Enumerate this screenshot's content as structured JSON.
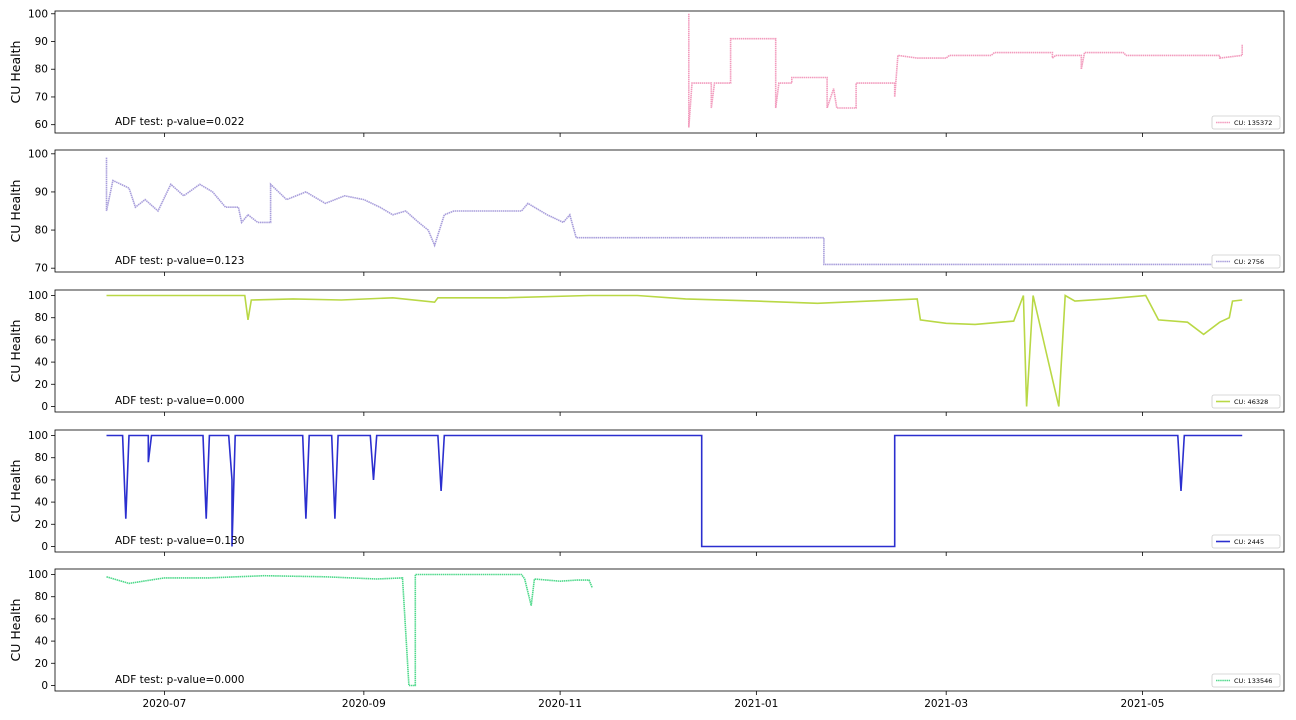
{
  "chart_data": [
    {
      "type": "line",
      "ylabel": "CU Health",
      "legend": "CU: 135372",
      "annotation": "ADF test: p-value=0.022",
      "color": "#f29bbd",
      "line_style": "dotted",
      "legend_placement": "lower-right",
      "ylim": [
        57,
        101
      ],
      "yticks": [
        60,
        70,
        80,
        90,
        100
      ],
      "series": [
        {
          "name": "CU: 135372",
          "points": [
            [
              "2020-12-11",
              100
            ],
            [
              "2020-12-11",
              59
            ],
            [
              "2020-12-12",
              75
            ],
            [
              "2020-12-18",
              75
            ],
            [
              "2020-12-18",
              66
            ],
            [
              "2020-12-19",
              75
            ],
            [
              "2020-12-24",
              75
            ],
            [
              "2020-12-24",
              91
            ],
            [
              "2021-01-07",
              91
            ],
            [
              "2021-01-07",
              66
            ],
            [
              "2021-01-08",
              75
            ],
            [
              "2021-01-12",
              75
            ],
            [
              "2021-01-12",
              77
            ],
            [
              "2021-01-23",
              77
            ],
            [
              "2021-01-23",
              66
            ],
            [
              "2021-01-25",
              73
            ],
            [
              "2021-01-26",
              66
            ],
            [
              "2021-02-01",
              66
            ],
            [
              "2021-02-01",
              75
            ],
            [
              "2021-02-13",
              75
            ],
            [
              "2021-02-13",
              70
            ],
            [
              "2021-02-14",
              85
            ],
            [
              "2021-02-20",
              84
            ],
            [
              "2021-03-01",
              84
            ],
            [
              "2021-03-02",
              85
            ],
            [
              "2021-03-15",
              85
            ],
            [
              "2021-03-16",
              86
            ],
            [
              "2021-04-03",
              86
            ],
            [
              "2021-04-03",
              84
            ],
            [
              "2021-04-04",
              85
            ],
            [
              "2021-04-12",
              85
            ],
            [
              "2021-04-12",
              80
            ],
            [
              "2021-04-13",
              86
            ],
            [
              "2021-04-25",
              86
            ],
            [
              "2021-04-26",
              85
            ],
            [
              "2021-05-25",
              85
            ],
            [
              "2021-05-25",
              84
            ],
            [
              "2021-06-01",
              85
            ],
            [
              "2021-06-01",
              89
            ]
          ]
        }
      ]
    },
    {
      "type": "line",
      "ylabel": "CU Health",
      "legend": "CU: 2756",
      "annotation": "ADF test: p-value=0.123",
      "color": "#a89edb",
      "line_style": "dotted",
      "legend_placement": "lower-right",
      "ylim": [
        69,
        101
      ],
      "yticks": [
        70,
        80,
        90,
        100
      ],
      "series": [
        {
          "name": "CU: 2756",
          "points": [
            [
              "2020-06-13",
              99
            ],
            [
              "2020-06-13",
              85
            ],
            [
              "2020-06-15",
              93
            ],
            [
              "2020-06-20",
              91
            ],
            [
              "2020-06-22",
              86
            ],
            [
              "2020-06-25",
              88
            ],
            [
              "2020-06-29",
              85
            ],
            [
              "2020-07-03",
              92
            ],
            [
              "2020-07-07",
              89
            ],
            [
              "2020-07-12",
              92
            ],
            [
              "2020-07-16",
              90
            ],
            [
              "2020-07-20",
              86
            ],
            [
              "2020-07-24",
              86
            ],
            [
              "2020-07-25",
              82
            ],
            [
              "2020-07-27",
              84
            ],
            [
              "2020-07-30",
              82
            ],
            [
              "2020-08-03",
              82
            ],
            [
              "2020-08-03",
              92
            ],
            [
              "2020-08-08",
              88
            ],
            [
              "2020-08-14",
              90
            ],
            [
              "2020-08-20",
              87
            ],
            [
              "2020-08-26",
              89
            ],
            [
              "2020-09-01",
              88
            ],
            [
              "2020-09-06",
              86
            ],
            [
              "2020-09-10",
              84
            ],
            [
              "2020-09-14",
              85
            ],
            [
              "2020-09-18",
              82
            ],
            [
              "2020-09-21",
              80
            ],
            [
              "2020-09-23",
              76
            ],
            [
              "2020-09-26",
              84
            ],
            [
              "2020-09-29",
              85
            ],
            [
              "2020-10-20",
              85
            ],
            [
              "2020-10-22",
              87
            ],
            [
              "2020-10-28",
              84
            ],
            [
              "2020-11-02",
              82
            ],
            [
              "2020-11-04",
              84
            ],
            [
              "2020-11-06",
              78
            ],
            [
              "2021-01-22",
              78
            ],
            [
              "2021-01-22",
              71
            ],
            [
              "2021-06-01",
              71
            ],
            [
              "2021-06-01",
              70
            ]
          ]
        }
      ]
    },
    {
      "type": "line",
      "ylabel": "CU Health",
      "legend": "CU: 46328",
      "annotation": "ADF test: p-value=0.000",
      "color": "#b9d845",
      "line_style": "solid",
      "legend_placement": "lower-right",
      "ylim": [
        -5,
        105
      ],
      "yticks": [
        0,
        20,
        40,
        60,
        80,
        100
      ],
      "series": [
        {
          "name": "CU: 46328",
          "points": [
            [
              "2020-06-13",
              100
            ],
            [
              "2020-07-26",
              100
            ],
            [
              "2020-07-27",
              78
            ],
            [
              "2020-07-28",
              96
            ],
            [
              "2020-08-10",
              97
            ],
            [
              "2020-08-25",
              96
            ],
            [
              "2020-09-10",
              98
            ],
            [
              "2020-09-23",
              94
            ],
            [
              "2020-09-24",
              98
            ],
            [
              "2020-10-15",
              98
            ],
            [
              "2020-11-10",
              100
            ],
            [
              "2020-11-25",
              100
            ],
            [
              "2020-12-10",
              97
            ],
            [
              "2021-01-01",
              95
            ],
            [
              "2021-01-20",
              93
            ],
            [
              "2021-02-05",
              95
            ],
            [
              "2021-02-20",
              97
            ],
            [
              "2021-02-21",
              78
            ],
            [
              "2021-03-01",
              75
            ],
            [
              "2021-03-10",
              74
            ],
            [
              "2021-03-22",
              77
            ],
            [
              "2021-03-25",
              100
            ],
            [
              "2021-03-26",
              0
            ],
            [
              "2021-03-28",
              100
            ],
            [
              "2021-04-01",
              50
            ],
            [
              "2021-04-05",
              0
            ],
            [
              "2021-04-07",
              100
            ],
            [
              "2021-04-10",
              95
            ],
            [
              "2021-04-20",
              97
            ],
            [
              "2021-05-02",
              100
            ],
            [
              "2021-05-06",
              78
            ],
            [
              "2021-05-15",
              76
            ],
            [
              "2021-05-20",
              65
            ],
            [
              "2021-05-25",
              76
            ],
            [
              "2021-05-28",
              80
            ],
            [
              "2021-05-29",
              95
            ],
            [
              "2021-06-01",
              96
            ]
          ]
        }
      ]
    },
    {
      "type": "line",
      "ylabel": "CU Health",
      "legend": "CU: 2445",
      "annotation": "ADF test: p-value=0.130",
      "color": "#2b2fcf",
      "line_style": "solid",
      "legend_placement": "lower-right",
      "ylim": [
        -5,
        105
      ],
      "yticks": [
        0,
        20,
        40,
        60,
        80,
        100
      ],
      "series": [
        {
          "name": "CU: 2445",
          "points": [
            [
              "2020-06-13",
              100
            ],
            [
              "2020-06-18",
              100
            ],
            [
              "2020-06-19",
              25
            ],
            [
              "2020-06-20",
              100
            ],
            [
              "2020-06-26",
              100
            ],
            [
              "2020-06-26",
              76
            ],
            [
              "2020-06-27",
              100
            ],
            [
              "2020-07-13",
              100
            ],
            [
              "2020-07-14",
              25
            ],
            [
              "2020-07-15",
              100
            ],
            [
              "2020-07-21",
              100
            ],
            [
              "2020-07-22",
              60
            ],
            [
              "2020-07-22",
              0
            ],
            [
              "2020-07-23",
              100
            ],
            [
              "2020-08-13",
              100
            ],
            [
              "2020-08-14",
              25
            ],
            [
              "2020-08-15",
              100
            ],
            [
              "2020-08-22",
              100
            ],
            [
              "2020-08-23",
              25
            ],
            [
              "2020-08-24",
              100
            ],
            [
              "2020-09-03",
              100
            ],
            [
              "2020-09-04",
              60
            ],
            [
              "2020-09-05",
              100
            ],
            [
              "2020-09-24",
              100
            ],
            [
              "2020-09-25",
              50
            ],
            [
              "2020-09-26",
              100
            ],
            [
              "2020-12-15",
              100
            ],
            [
              "2020-12-15",
              0
            ],
            [
              "2021-02-13",
              0
            ],
            [
              "2021-02-13",
              100
            ],
            [
              "2021-05-12",
              100
            ],
            [
              "2021-05-13",
              50
            ],
            [
              "2021-05-14",
              100
            ],
            [
              "2021-06-01",
              100
            ]
          ]
        }
      ]
    },
    {
      "type": "line",
      "ylabel": "CU Health",
      "legend": "CU: 133546",
      "annotation": "ADF test: p-value=0.000",
      "color": "#4fd98b",
      "line_style": "dotted",
      "legend_placement": "lower-right",
      "ylim": [
        -5,
        105
      ],
      "yticks": [
        0,
        20,
        40,
        60,
        80,
        100
      ],
      "series": [
        {
          "name": "CU: 133546",
          "points": [
            [
              "2020-06-13",
              98
            ],
            [
              "2020-06-20",
              92
            ],
            [
              "2020-07-01",
              97
            ],
            [
              "2020-07-15",
              97
            ],
            [
              "2020-08-01",
              99
            ],
            [
              "2020-08-20",
              98
            ],
            [
              "2020-09-05",
              96
            ],
            [
              "2020-09-13",
              97
            ],
            [
              "2020-09-15",
              0
            ],
            [
              "2020-09-17",
              0
            ],
            [
              "2020-09-17",
              100
            ],
            [
              "2020-10-20",
              100
            ],
            [
              "2020-10-21",
              96
            ],
            [
              "2020-10-23",
              72
            ],
            [
              "2020-10-24",
              96
            ],
            [
              "2020-11-01",
              94
            ],
            [
              "2020-11-06",
              95
            ],
            [
              "2020-11-10",
              95
            ],
            [
              "2020-11-11",
              88
            ]
          ]
        }
      ]
    }
  ],
  "x_axis": {
    "type": "date",
    "range": [
      "2020-05-28",
      "2021-06-14"
    ],
    "ticks": [
      {
        "date": "2020-07-01",
        "label": "2020-07"
      },
      {
        "date": "2020-09-01",
        "label": "2020-09"
      },
      {
        "date": "2020-11-01",
        "label": "2020-11"
      },
      {
        "date": "2021-01-01",
        "label": "2021-01"
      },
      {
        "date": "2021-03-01",
        "label": "2021-03"
      },
      {
        "date": "2021-05-01",
        "label": "2021-05"
      }
    ]
  }
}
